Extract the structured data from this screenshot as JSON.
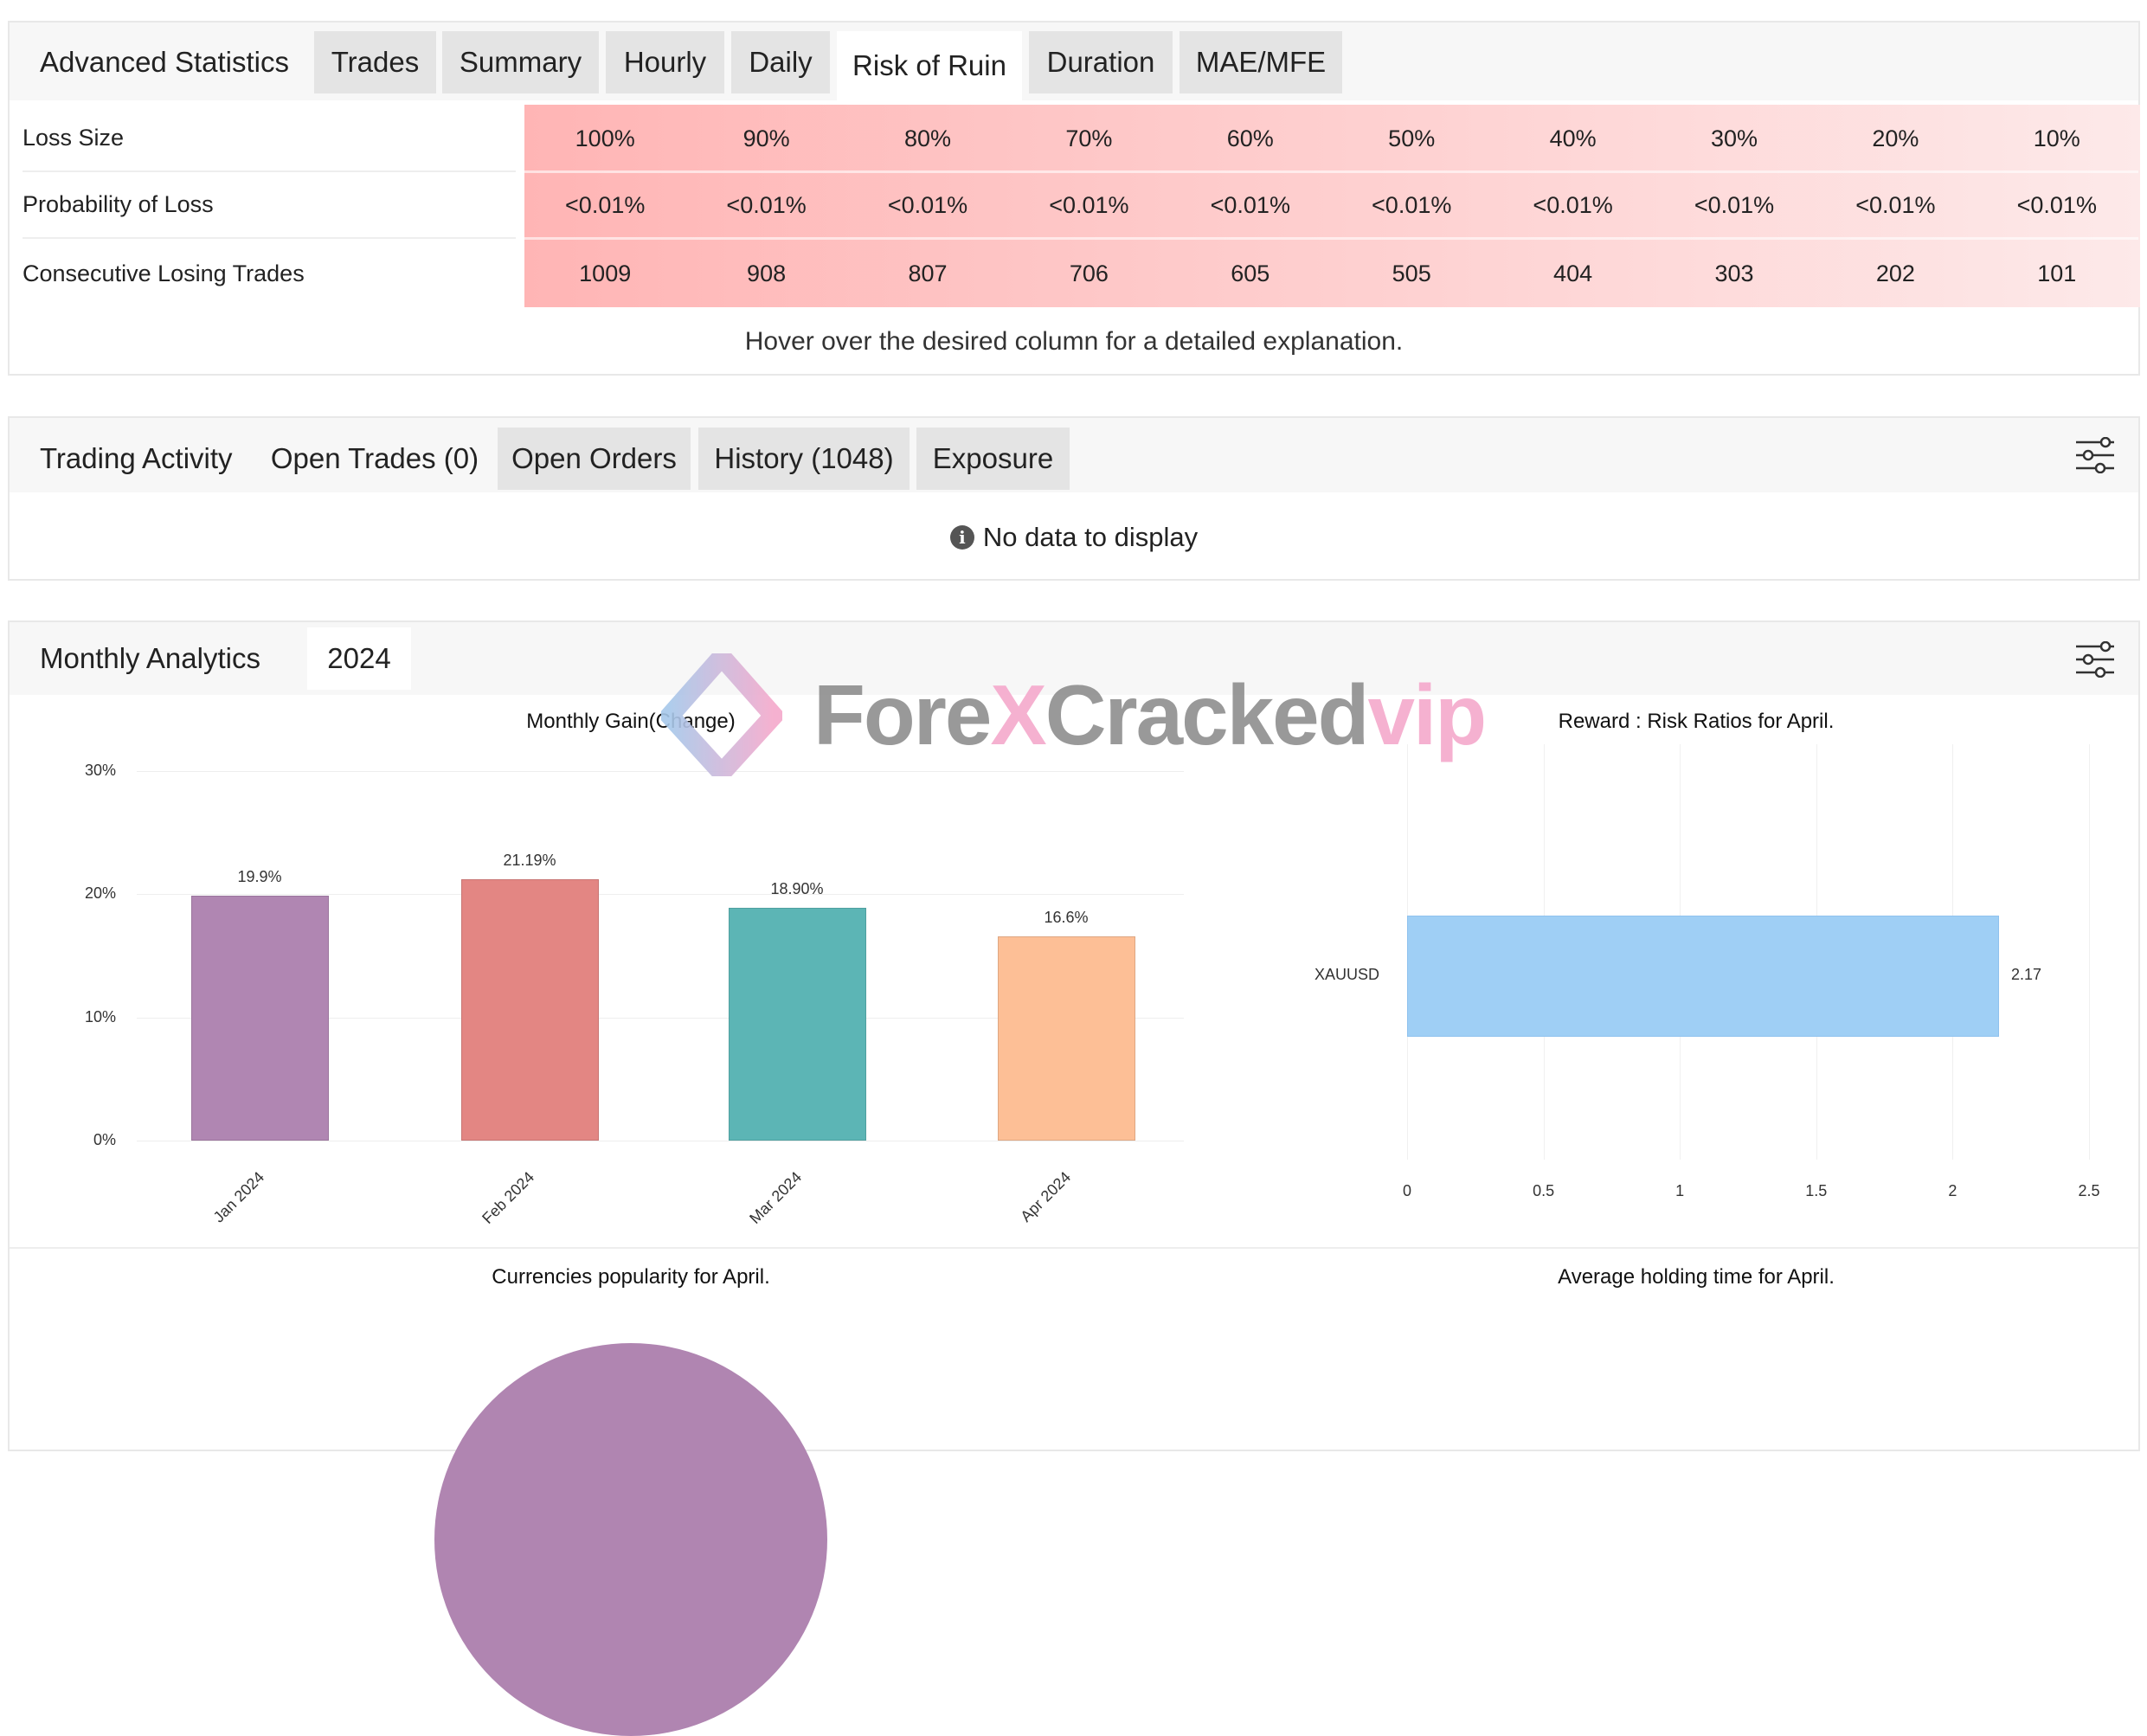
{
  "advanced_statistics": {
    "title": "Advanced Statistics",
    "tabs": [
      {
        "label": "Trades",
        "active": false
      },
      {
        "label": "Summary",
        "active": false
      },
      {
        "label": "Hourly",
        "active": false
      },
      {
        "label": "Daily",
        "active": false
      },
      {
        "label": "Risk of Ruin",
        "active": true
      },
      {
        "label": "Duration",
        "active": false
      },
      {
        "label": "MAE/MFE",
        "active": false
      }
    ],
    "rows": [
      {
        "label": "Loss Size",
        "values": [
          "100%",
          "90%",
          "80%",
          "70%",
          "60%",
          "50%",
          "40%",
          "30%",
          "20%",
          "10%"
        ]
      },
      {
        "label": "Probability of Loss",
        "values": [
          "<0.01%",
          "<0.01%",
          "<0.01%",
          "<0.01%",
          "<0.01%",
          "<0.01%",
          "<0.01%",
          "<0.01%",
          "<0.01%",
          "<0.01%"
        ]
      },
      {
        "label": "Consecutive Losing Trades",
        "values": [
          "1009",
          "908",
          "807",
          "706",
          "605",
          "505",
          "404",
          "303",
          "202",
          "101"
        ]
      }
    ],
    "hint": "Hover over the desired column for a detailed explanation."
  },
  "trading_activity": {
    "title": "Trading Activity",
    "tabs": [
      {
        "label": "Open Trades (0)",
        "active": true
      },
      {
        "label": "Open Orders",
        "active": false
      },
      {
        "label": "History (1048)",
        "active": false
      },
      {
        "label": "Exposure",
        "active": false
      }
    ],
    "empty_message": "No data to display"
  },
  "monthly_analytics": {
    "title": "Monthly Analytics",
    "year": "2024",
    "bottom_titles": [
      "Currencies popularity for April.",
      "Average holding time for April."
    ]
  },
  "watermark": {
    "text_gray": "Fore",
    "text_pink": "XCracked",
    "text_gray2": "",
    "text_vip": "vip"
  },
  "colors": {
    "loss_gradient_start": "#ffb5b5",
    "loss_gradient_end": "#fde9e9",
    "pie": "#b085b1"
  },
  "chart_data": [
    {
      "type": "bar",
      "title": "Monthly Gain(Change)",
      "categories": [
        "Jan 2024",
        "Feb 2024",
        "Mar 2024",
        "Apr 2024"
      ],
      "values": [
        19.9,
        21.19,
        18.9,
        16.6
      ],
      "data_labels": [
        "19.9%",
        "21.19%",
        "18.90%",
        "16.6%"
      ],
      "colors": [
        "#b086b2",
        "#e38683",
        "#5cb5b5",
        "#fdbf96"
      ],
      "yticks": [
        "0%",
        "10%",
        "20%",
        "30%"
      ],
      "ylim": [
        0,
        30
      ],
      "grid": true
    },
    {
      "type": "bar",
      "orientation": "horizontal",
      "title": "Reward : Risk Ratios for April.",
      "categories": [
        "XAUUSD"
      ],
      "values": [
        2.17
      ],
      "data_labels": [
        "2.17"
      ],
      "colors": [
        "#9fcff5"
      ],
      "xticks": [
        "0",
        "0.5",
        "1",
        "1.5",
        "2",
        "2.5"
      ],
      "xlim": [
        0,
        2.5
      ],
      "grid": true
    },
    {
      "type": "pie",
      "title": "Currencies popularity for April.",
      "colors": [
        "#b085b1"
      ]
    }
  ]
}
